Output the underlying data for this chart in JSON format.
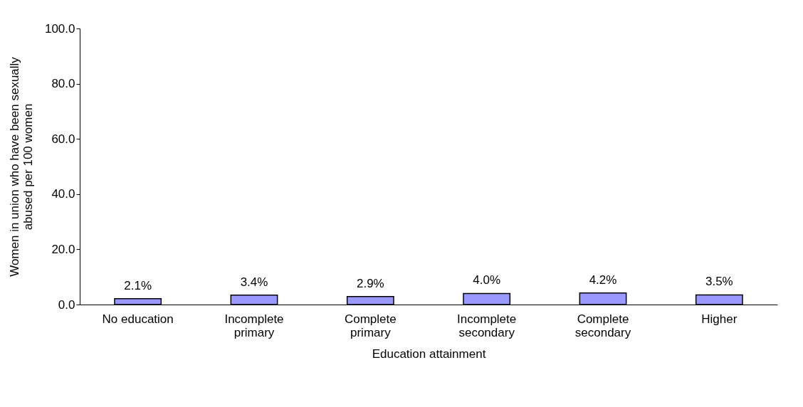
{
  "chart_data": {
    "type": "bar",
    "xlabel": "Education attainment",
    "ylabel": "Women in union who have been sexually abused per 100 women",
    "categories": [
      "No education",
      "Incomplete primary",
      "Complete primary",
      "Incomplete secondary",
      "Complete secondary",
      "Higher"
    ],
    "values": [
      2.1,
      3.4,
      2.9,
      4.0,
      4.2,
      3.5
    ],
    "value_labels": [
      "2.1%",
      "3.4%",
      "2.9%",
      "4.0%",
      "4.2%",
      "3.5%"
    ],
    "color": "#9999ff",
    "ylim": [
      0,
      100
    ],
    "yticks": [
      {
        "value": 0,
        "label": "0.0"
      },
      {
        "value": 20,
        "label": "20.0"
      },
      {
        "value": 40,
        "label": "40.0"
      },
      {
        "value": 60,
        "label": "60.0"
      },
      {
        "value": 80,
        "label": "80.0"
      },
      {
        "value": 100,
        "label": "100.0"
      }
    ],
    "grid": false
  }
}
